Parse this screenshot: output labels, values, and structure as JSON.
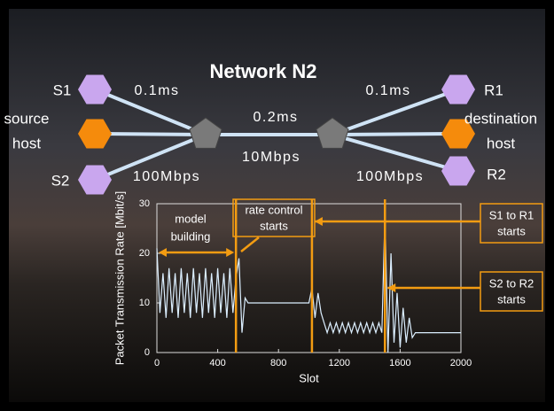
{
  "diagram": {
    "title": "Network N2",
    "nodes": [
      {
        "label": [
          "S1"
        ]
      },
      {
        "label": [
          "source",
          "host"
        ]
      },
      {
        "label": [
          "S2"
        ]
      },
      {
        "label": [
          "R1"
        ]
      },
      {
        "label": [
          "destination",
          "host"
        ]
      },
      {
        "label": [
          "R2"
        ]
      }
    ],
    "link_labels": [
      "0.1ms",
      "0.1ms",
      "0.2ms",
      "10Mbps",
      "100Mbps",
      "100Mbps"
    ]
  },
  "chart_data": {
    "type": "line",
    "x": [
      0,
      20,
      40,
      60,
      80,
      100,
      120,
      140,
      160,
      180,
      200,
      220,
      240,
      260,
      280,
      300,
      320,
      340,
      360,
      380,
      400,
      420,
      440,
      460,
      480,
      500,
      520,
      540,
      560,
      580,
      600,
      620,
      640,
      660,
      680,
      700,
      720,
      740,
      760,
      780,
      800,
      820,
      840,
      860,
      880,
      900,
      920,
      940,
      960,
      980,
      1000,
      1020,
      1040,
      1060,
      1080,
      1100,
      1120,
      1140,
      1160,
      1180,
      1200,
      1220,
      1240,
      1260,
      1280,
      1300,
      1320,
      1340,
      1360,
      1380,
      1400,
      1420,
      1440,
      1460,
      1480,
      1500,
      1520,
      1540,
      1560,
      1580,
      1600,
      1620,
      1640,
      1660,
      1680,
      1700,
      1720,
      1740,
      1760,
      1780,
      1800,
      1820,
      1840,
      1860,
      1880,
      1900,
      1920,
      1940,
      1960,
      1980,
      2000
    ],
    "values": [
      21,
      8,
      16,
      7,
      17,
      8,
      16,
      7,
      17,
      8,
      16,
      7,
      17,
      8,
      16,
      7,
      17,
      8,
      16,
      7,
      17,
      8,
      16,
      7,
      17,
      8,
      15,
      19,
      4,
      11,
      10,
      10,
      10,
      10,
      10,
      10,
      10,
      10,
      10,
      10,
      10,
      10,
      10,
      10,
      10,
      10,
      10,
      10,
      10,
      10,
      10,
      13,
      7,
      12,
      8,
      6,
      4,
      6,
      4,
      6,
      4,
      6,
      4,
      6,
      4,
      6,
      4,
      6,
      4,
      6,
      4,
      6,
      4,
      6,
      4,
      28,
      0,
      20,
      2,
      12,
      1,
      9,
      2,
      7,
      3,
      4,
      4,
      4,
      4,
      4,
      4,
      4,
      4,
      4,
      4,
      4,
      4,
      4,
      4,
      4,
      4
    ],
    "color": "#dcefff",
    "xlabel": "Slot",
    "ylabel": "Packet Transmission Rate [Mbit/s]",
    "xlim": [
      0,
      2000
    ],
    "ylim": [
      0,
      30
    ],
    "xticks": [
      0,
      400,
      800,
      1200,
      1600,
      2000
    ],
    "yticks": [
      0,
      10,
      20,
      30
    ],
    "event_lines": [
      520,
      1020,
      1500
    ],
    "event_color": "#f39c12",
    "annotations": [
      {
        "text": [
          "model",
          "building"
        ]
      },
      {
        "text": [
          "rate control",
          "starts"
        ]
      },
      {
        "text": [
          "S1 to R1",
          "starts"
        ]
      },
      {
        "text": [
          "S2 to R2",
          "starts"
        ]
      }
    ]
  }
}
